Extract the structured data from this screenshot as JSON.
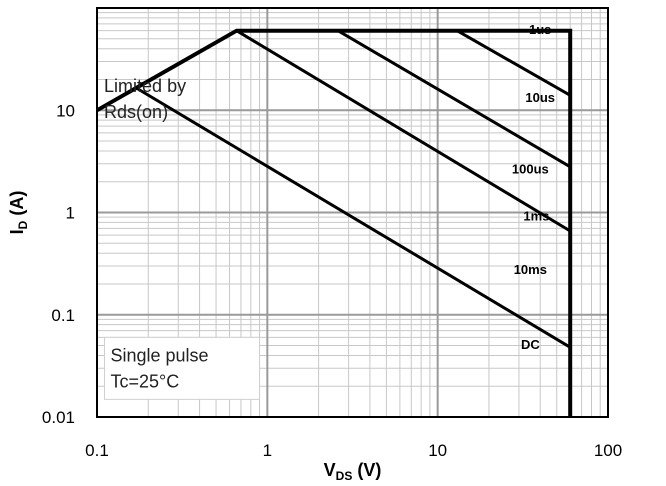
{
  "chart_data": {
    "type": "line",
    "x_scale": "log",
    "y_scale": "log",
    "xlim": [
      0.1,
      100
    ],
    "ylim": [
      0.01,
      100
    ],
    "grid": true,
    "xlabel_main": "V",
    "xlabel_sub": "DS",
    "xlabel_unit": " (V)",
    "ylabel_main": "I",
    "ylabel_sub": "D",
    "ylabel_unit": " (A)",
    "x_ticks": [
      {
        "value": 0.1,
        "label": "0.1"
      },
      {
        "value": 1,
        "label": "1"
      },
      {
        "value": 10,
        "label": "10"
      },
      {
        "value": 100,
        "label": "100"
      }
    ],
    "y_ticks": [
      {
        "value": 0.01,
        "label": "0.01"
      },
      {
        "value": 0.1,
        "label": "0.1"
      },
      {
        "value": 1,
        "label": "1"
      },
      {
        "value": 10,
        "label": "10"
      }
    ],
    "boundary": [
      [
        0.1,
        10
      ],
      [
        0.66,
        60
      ],
      [
        60,
        60
      ],
      [
        60,
        0.01
      ]
    ],
    "series": [
      {
        "name": "1us",
        "points": [
          [
            13,
            60
          ],
          [
            60,
            14
          ]
        ],
        "label_at": [
          40,
          60
        ]
      },
      {
        "name": "10us",
        "points": [
          [
            2.6,
            60
          ],
          [
            60,
            2.8
          ]
        ],
        "label_at": [
          40,
          13
        ]
      },
      {
        "name": "100us",
        "points": [
          [
            0.66,
            60
          ],
          [
            60,
            0.66
          ]
        ],
        "label_at": [
          35,
          2.6
        ]
      },
      {
        "name": "1ms",
        "points": [
          [
            0.17,
            16.5
          ],
          [
            60,
            0.048
          ]
        ],
        "label_at": [
          38,
          0.9
        ]
      },
      {
        "name": "10ms",
        "points": [],
        "label_at": [
          35,
          0.27
        ]
      },
      {
        "name": "DC",
        "points": [],
        "label_at": [
          35,
          0.05
        ]
      }
    ],
    "annotations": [
      {
        "lines": [
          "Limited by",
          "Rds(on)"
        ],
        "at": [
          0.11,
          15
        ]
      },
      {
        "lines": [
          "Single pulse",
          "Tc=25°C"
        ],
        "at": [
          0.12,
          0.035
        ],
        "boxed": true
      }
    ]
  }
}
